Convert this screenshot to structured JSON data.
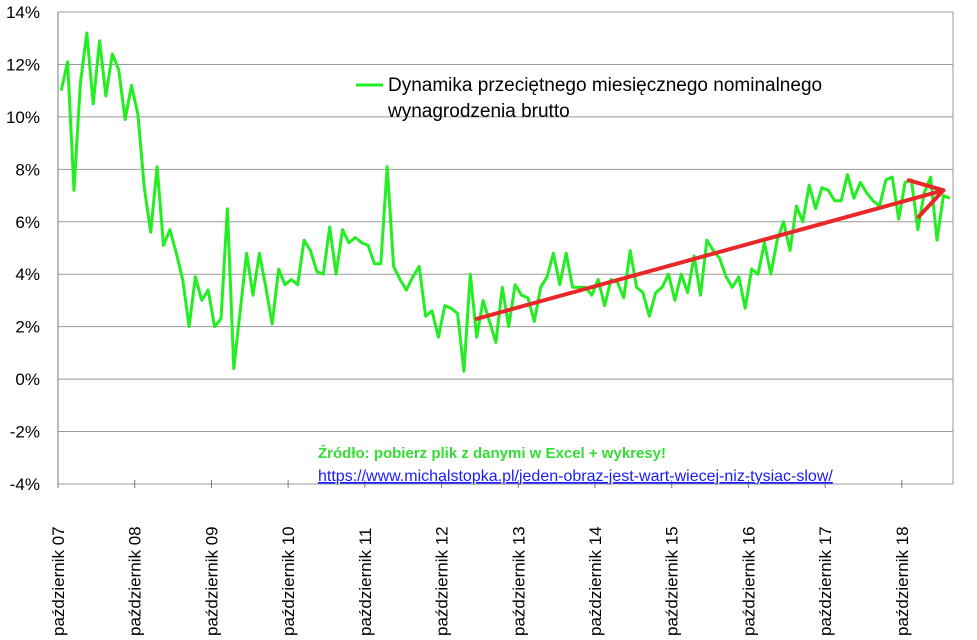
{
  "chart_data": {
    "type": "line",
    "ylabel": "",
    "xlabel": "",
    "ylim": [
      -4,
      14
    ],
    "y_tick_values": [
      -4,
      -2,
      0,
      2,
      4,
      6,
      8,
      10,
      12,
      14
    ],
    "y_tick_labels": [
      "-4%",
      "-2%",
      "0%",
      "2%",
      "4%",
      "6%",
      "8%",
      "10%",
      "12%",
      "14%"
    ],
    "x_tick_labels": [
      "październik 07",
      "październik 08",
      "październik 09",
      "październik 10",
      "październik 11",
      "październik 12",
      "październik 13",
      "październik 14",
      "październik 15",
      "październik 16",
      "październik 17",
      "październik 18"
    ],
    "months_per_tick": 12,
    "grid": true,
    "legend_position": "top-center",
    "series": [
      {
        "name": "Dynamika przeciętnego miesięcznego nominalnego wynagrodzenia brutto",
        "color": "#22ee22",
        "values": [
          11.0,
          12.1,
          7.2,
          11.3,
          13.2,
          10.5,
          12.9,
          10.8,
          12.4,
          11.8,
          9.9,
          11.2,
          10.1,
          7.3,
          5.6,
          8.1,
          5.1,
          5.7,
          4.8,
          3.8,
          2.0,
          3.9,
          3.0,
          3.4,
          2.0,
          2.3,
          6.5,
          0.4,
          2.6,
          4.8,
          3.2,
          4.8,
          3.5,
          2.1,
          4.2,
          3.6,
          3.8,
          3.6,
          5.3,
          4.9,
          4.1,
          4.0,
          5.8,
          4.0,
          5.7,
          5.2,
          5.4,
          5.2,
          5.1,
          4.4,
          4.4,
          8.1,
          4.3,
          3.8,
          3.4,
          3.9,
          4.3,
          2.4,
          2.6,
          1.6,
          2.8,
          2.7,
          2.5,
          0.3,
          4.0,
          1.6,
          3.0,
          2.2,
          1.4,
          3.5,
          2.0,
          3.6,
          3.2,
          3.1,
          2.2,
          3.5,
          3.9,
          4.8,
          3.6,
          4.8,
          3.5,
          3.5,
          3.5,
          3.2,
          3.8,
          2.8,
          3.8,
          3.7,
          3.1,
          4.9,
          3.5,
          3.3,
          2.4,
          3.3,
          3.5,
          4.0,
          3.0,
          4.0,
          3.3,
          4.7,
          3.2,
          5.3,
          4.9,
          4.6,
          3.9,
          3.5,
          3.9,
          2.7,
          4.2,
          4.0,
          5.2,
          4.0,
          5.3,
          6.0,
          4.9,
          6.6,
          6.0,
          7.4,
          6.5,
          7.3,
          7.2,
          6.8,
          6.8,
          7.8,
          6.9,
          7.5,
          7.1,
          6.8,
          6.6,
          7.6,
          7.7,
          6.1,
          7.5,
          7.6,
          5.7,
          7.1,
          7.7,
          5.3,
          7.0,
          6.9
        ]
      }
    ],
    "trend_arrow": {
      "color": "#e82828",
      "start": {
        "x_index": 65,
        "y": 2.3
      },
      "end": {
        "x_index": 138,
        "y": 7.2
      }
    },
    "annotation": {
      "source_title": "Źródło: pobierz plik z danymi w Excel + wykresy!",
      "source_url": "https://www.michalstopka.pl/jeden-obraz-jest-wart-wiecej-niz-tysiac-slow/"
    }
  }
}
